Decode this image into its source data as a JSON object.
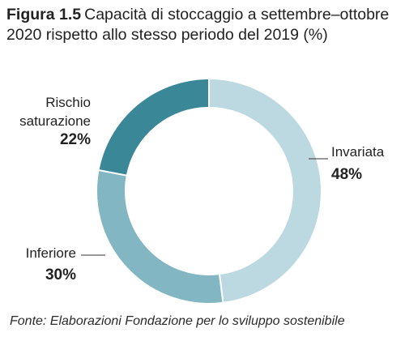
{
  "figure": {
    "label": "Figura 1.5",
    "title": "Capacità di stoccaggio a settembre–ottobre 2020 rispetto allo stesso periodo del 2019 (%)"
  },
  "source": "Fonte: Elaborazioni Fondazione per lo sviluppo sostenibile",
  "chart_data": {
    "type": "pie",
    "variant": "donut",
    "unit": "%",
    "categories": [
      "Invariata",
      "Inferiore",
      "Rischio saturazione"
    ],
    "values": [
      48,
      30,
      22
    ],
    "labels": [
      {
        "lines": [
          "Invariata"
        ],
        "value_text": "48%"
      },
      {
        "lines": [
          "Inferiore"
        ],
        "value_text": "30%"
      },
      {
        "lines": [
          "Rischio",
          "saturazione"
        ],
        "value_text": "22%"
      }
    ],
    "colors": [
      "#bcd9e1",
      "#82b6c2",
      "#3a8797"
    ],
    "start": "top (12 o'clock), clockwise",
    "legend": "none (direct labels)"
  }
}
